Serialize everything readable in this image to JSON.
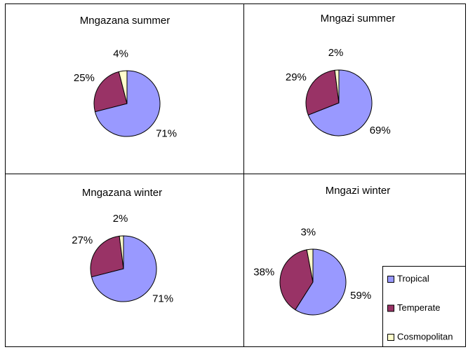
{
  "chart_data": [
    {
      "type": "pie",
      "title": "Mngazana summer",
      "categories": [
        "Tropical",
        "Temperate",
        "Cosmopolitan"
      ],
      "values": [
        71,
        25,
        4
      ],
      "colors": [
        "#9999ff",
        "#993366",
        "#ffffcc"
      ],
      "legend": false
    },
    {
      "type": "pie",
      "title": "Mngazi summer",
      "categories": [
        "Tropical",
        "Temperate",
        "Cosmopolitan"
      ],
      "values": [
        69,
        29,
        2
      ],
      "colors": [
        "#9999ff",
        "#993366",
        "#ffffcc"
      ],
      "legend": false
    },
    {
      "type": "pie",
      "title": "Mngazana winter",
      "categories": [
        "Tropical",
        "Temperate",
        "Cosmopolitan"
      ],
      "values": [
        71,
        27,
        2
      ],
      "colors": [
        "#9999ff",
        "#993366",
        "#ffffcc"
      ],
      "legend": false
    },
    {
      "type": "pie",
      "title": "Mngazi winter",
      "categories": [
        "Tropical",
        "Temperate",
        "Cosmopolitan"
      ],
      "values": [
        59,
        38,
        3
      ],
      "colors": [
        "#9999ff",
        "#993366",
        "#ffffcc"
      ],
      "legend": true
    }
  ]
}
